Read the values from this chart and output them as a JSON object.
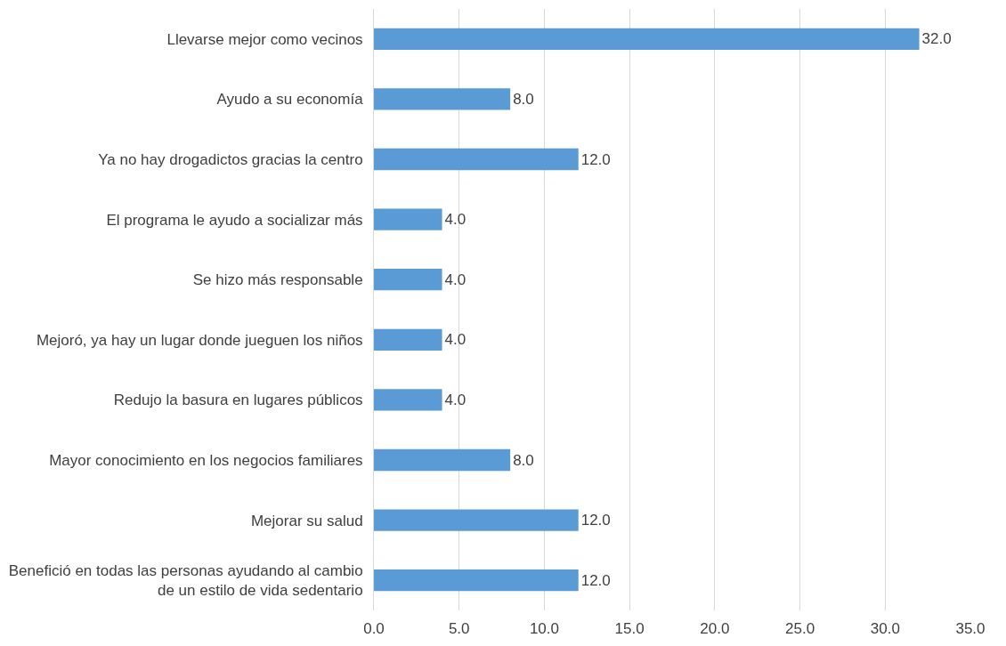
{
  "chart_data": {
    "type": "bar",
    "orientation": "horizontal",
    "categories": [
      "Llevarse mejor como vecinos",
      "Ayudo a su economía",
      "Ya no hay drogadictos gracias la centro",
      "El programa le ayudo a socializar más",
      "Se hizo más responsable",
      "Mejoró, ya hay un lugar donde jueguen los niños",
      "Redujo la basura en lugares públicos",
      "Mayor conocimiento en los negocios familiares",
      "Mejorar su salud",
      "Benefició en todas las personas ayudando al cambio\nde un estilo de vida sedentario"
    ],
    "values": [
      32,
      8,
      12,
      4,
      4,
      4,
      4,
      8,
      12,
      12
    ],
    "value_labels": [
      "32.0",
      "8.0",
      "12.0",
      "4.0",
      "4.0",
      "4.0",
      "4.0",
      "8.0",
      "12.0",
      "12.0"
    ],
    "color": "#5b9bd5",
    "xlim": [
      0,
      35
    ],
    "xticks": [
      {
        "value": 0,
        "label": "0.0"
      },
      {
        "value": 5,
        "label": "5.0"
      },
      {
        "value": 10,
        "label": "10.0"
      },
      {
        "value": 15,
        "label": "15.0"
      },
      {
        "value": 20,
        "label": "20.0"
      },
      {
        "value": 25,
        "label": "25.0"
      },
      {
        "value": 30,
        "label": "30.0"
      },
      {
        "value": 35,
        "label": "35.0"
      }
    ],
    "grid": "x"
  }
}
